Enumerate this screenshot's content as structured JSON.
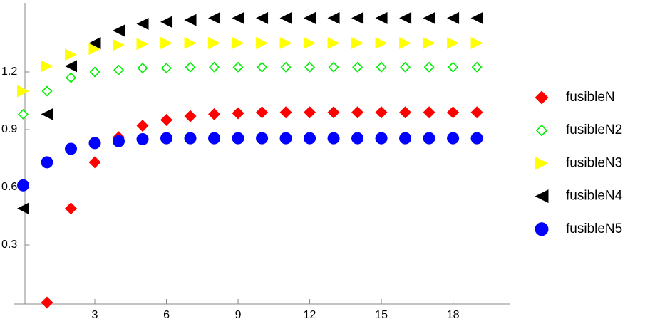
{
  "chart_data": {
    "type": "scatter",
    "x": [
      0,
      1,
      2,
      3,
      4,
      5,
      6,
      7,
      8,
      9,
      10,
      11,
      12,
      13,
      14,
      15,
      16,
      17,
      18,
      19
    ],
    "series": [
      {
        "name": "fusibleN",
        "color": "#ff0000",
        "marker": "diamond",
        "values": [
          null,
          0,
          0.49,
          0.73,
          0.86,
          0.92,
          0.95,
          0.97,
          0.98,
          0.985,
          0.99,
          0.99,
          0.99,
          0.99,
          0.99,
          0.99,
          0.99,
          0.99,
          0.99,
          0.99
        ]
      },
      {
        "name": "fusibleN2",
        "color": "#00ee00",
        "marker": "diamond-open",
        "values": [
          0.98,
          1.1,
          1.17,
          1.2,
          1.21,
          1.22,
          1.22,
          1.225,
          1.225,
          1.225,
          1.225,
          1.225,
          1.225,
          1.225,
          1.225,
          1.225,
          1.225,
          1.225,
          1.225,
          1.225
        ]
      },
      {
        "name": "fusibleN3",
        "color": "#ffff00",
        "marker": "triangle-right",
        "values": [
          1.1,
          1.23,
          1.29,
          1.32,
          1.34,
          1.345,
          1.35,
          1.35,
          1.35,
          1.35,
          1.35,
          1.35,
          1.35,
          1.35,
          1.35,
          1.35,
          1.35,
          1.35,
          1.35,
          1.35
        ]
      },
      {
        "name": "fusibleN4",
        "color": "#000000",
        "marker": "triangle-left",
        "values": [
          0.49,
          0.98,
          1.23,
          1.35,
          1.415,
          1.45,
          1.46,
          1.47,
          1.48,
          1.48,
          1.48,
          1.48,
          1.48,
          1.48,
          1.48,
          1.48,
          1.48,
          1.48,
          1.48,
          1.48
        ]
      },
      {
        "name": "fusibleN5",
        "color": "#0000ff",
        "marker": "circle",
        "values": [
          0.61,
          0.73,
          0.8,
          0.83,
          0.84,
          0.85,
          0.855,
          0.855,
          0.855,
          0.855,
          0.855,
          0.855,
          0.855,
          0.855,
          0.855,
          0.855,
          0.855,
          0.855,
          0.855,
          0.855
        ]
      }
    ],
    "xlim": [
      0,
      20.4
    ],
    "ylim": [
      0,
      1.55
    ],
    "xticks": [
      3,
      6,
      9,
      12,
      15,
      18
    ],
    "yticks": [
      0.3,
      0.6,
      0.9,
      1.2
    ],
    "grid": false,
    "legend": "right"
  }
}
